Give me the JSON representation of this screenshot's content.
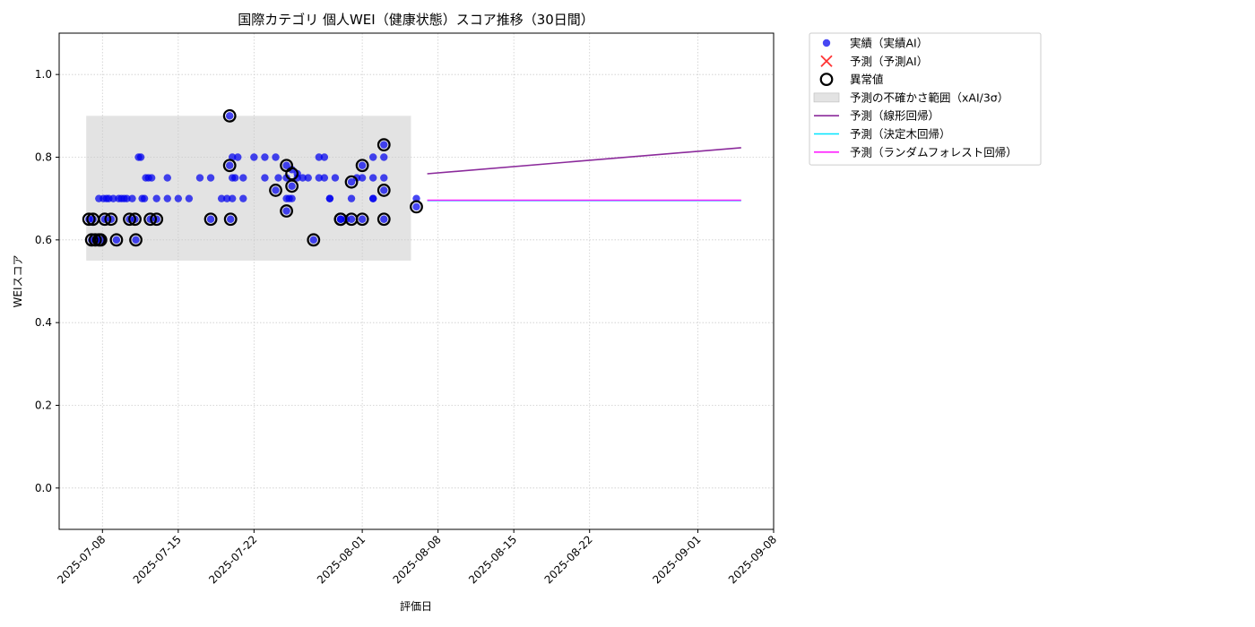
{
  "chart_data": {
    "type": "scatter",
    "title": "国際カテゴリ 個人WEI（健康状態）スコア推移（30日間）",
    "xlabel": "評価日",
    "ylabel": "WEIスコア",
    "xlim": [
      "2025-07-04",
      "2025-09-08"
    ],
    "ylim": [
      -0.1,
      1.1
    ],
    "x_ticks": [
      "2025-07-08",
      "2025-07-15",
      "2025-07-22",
      "2025-08-01",
      "2025-08-08",
      "2025-08-15",
      "2025-08-22",
      "2025-09-01",
      "2025-09-08"
    ],
    "y_ticks": [
      0.0,
      0.2,
      0.4,
      0.6,
      0.8,
      1.0
    ],
    "y_tick_labels": [
      "0.0",
      "0.2",
      "0.4",
      "0.6",
      "0.8",
      "1.0"
    ],
    "grid": true,
    "legend_position": "outside-top-right",
    "uncertainty_band": {
      "name": "予測の不確かさ範囲（xAI/3σ）",
      "x_start": "2025-07-06 12:00",
      "x_end": "2025-08-05 12:00",
      "y_low": 0.55,
      "y_high": 0.9,
      "color": "#c8c8c8"
    },
    "series": [
      {
        "name": "実績（実績AI）",
        "kind": "scatter",
        "color": "#0000ee",
        "points": [
          [
            "2025-07-06 18:00",
            0.65
          ],
          [
            "2025-07-07 03:00",
            0.65
          ],
          [
            "2025-07-07 00:00",
            0.6
          ],
          [
            "2025-07-07 08:00",
            0.6
          ],
          [
            "2025-07-07 13:00",
            0.6
          ],
          [
            "2025-07-07 16:00",
            0.7
          ],
          [
            "2025-07-07 20:00",
            0.6
          ],
          [
            "2025-07-08 02:00",
            0.7
          ],
          [
            "2025-07-08 05:00",
            0.65
          ],
          [
            "2025-07-08 09:00",
            0.7
          ],
          [
            "2025-07-08 14:00",
            0.7
          ],
          [
            "2025-07-08 19:00",
            0.65
          ],
          [
            "2025-07-09 00:00",
            0.7
          ],
          [
            "2025-07-09 07:00",
            0.6
          ],
          [
            "2025-07-09 12:00",
            0.7
          ],
          [
            "2025-07-09 18:00",
            0.7
          ],
          [
            "2025-07-10 00:00",
            0.7
          ],
          [
            "2025-07-10 06:00",
            0.7
          ],
          [
            "2025-07-10 12:00",
            0.65
          ],
          [
            "2025-07-10 18:00",
            0.7
          ],
          [
            "2025-07-11 00:00",
            0.65
          ],
          [
            "2025-07-11 02:00",
            0.6
          ],
          [
            "2025-07-11 08:00",
            0.8
          ],
          [
            "2025-07-11 13:00",
            0.8
          ],
          [
            "2025-07-11 16:00",
            0.7
          ],
          [
            "2025-07-11 21:00",
            0.7
          ],
          [
            "2025-07-12 00:00",
            0.75
          ],
          [
            "2025-07-12 06:00",
            0.75
          ],
          [
            "2025-07-12 10:00",
            0.65
          ],
          [
            "2025-07-12 13:00",
            0.75
          ],
          [
            "2025-07-13 00:00",
            0.7
          ],
          [
            "2025-07-13 00:00",
            0.65
          ],
          [
            "2025-07-14 00:00",
            0.7
          ],
          [
            "2025-07-14 00:00",
            0.75
          ],
          [
            "2025-07-15 00:00",
            0.7
          ],
          [
            "2025-07-16 00:00",
            0.7
          ],
          [
            "2025-07-17 00:00",
            0.75
          ],
          [
            "2025-07-18 00:00",
            0.65
          ],
          [
            "2025-07-18 00:00",
            0.75
          ],
          [
            "2025-07-19 00:00",
            0.7
          ],
          [
            "2025-07-19 12:00",
            0.7
          ],
          [
            "2025-07-19 18:00",
            0.9
          ],
          [
            "2025-07-19 18:00",
            0.78
          ],
          [
            "2025-07-19 20:00",
            0.65
          ],
          [
            "2025-07-20 00:00",
            0.75
          ],
          [
            "2025-07-20 00:00",
            0.8
          ],
          [
            "2025-07-20 00:00",
            0.7
          ],
          [
            "2025-07-20 06:00",
            0.75
          ],
          [
            "2025-07-20 12:00",
            0.8
          ],
          [
            "2025-07-21 00:00",
            0.75
          ],
          [
            "2025-07-21 00:00",
            0.7
          ],
          [
            "2025-07-22 00:00",
            0.8
          ],
          [
            "2025-07-23 00:00",
            0.75
          ],
          [
            "2025-07-23 00:00",
            0.8
          ],
          [
            "2025-07-24 00:00",
            0.72
          ],
          [
            "2025-07-24 00:00",
            0.8
          ],
          [
            "2025-07-24 06:00",
            0.75
          ],
          [
            "2025-07-25 00:00",
            0.75
          ],
          [
            "2025-07-25 00:00",
            0.7
          ],
          [
            "2025-07-25 00:00",
            0.67
          ],
          [
            "2025-07-25 00:00",
            0.78
          ],
          [
            "2025-07-25 06:00",
            0.7
          ],
          [
            "2025-07-25 12:00",
            0.77
          ],
          [
            "2025-07-25 12:00",
            0.73
          ],
          [
            "2025-07-25 12:00",
            0.7
          ],
          [
            "2025-07-26 00:00",
            0.76
          ],
          [
            "2025-07-26 00:00",
            0.75
          ],
          [
            "2025-07-26 12:00",
            0.75
          ],
          [
            "2025-07-27 00:00",
            0.75
          ],
          [
            "2025-07-27 12:00",
            0.6
          ],
          [
            "2025-07-28 00:00",
            0.8
          ],
          [
            "2025-07-28 00:00",
            0.75
          ],
          [
            "2025-07-28 12:00",
            0.8
          ],
          [
            "2025-07-28 12:00",
            0.75
          ],
          [
            "2025-07-29 00:00",
            0.7
          ],
          [
            "2025-07-29 00:00",
            0.7
          ],
          [
            "2025-07-29 12:00",
            0.75
          ],
          [
            "2025-07-30 00:00",
            0.65
          ],
          [
            "2025-07-30 00:00",
            0.65
          ],
          [
            "2025-07-30 12:00",
            0.65
          ],
          [
            "2025-07-31 00:00",
            0.65
          ],
          [
            "2025-07-31 00:00",
            0.74
          ],
          [
            "2025-07-31 00:00",
            0.7
          ],
          [
            "2025-07-31 12:00",
            0.75
          ],
          [
            "2025-08-01 00:00",
            0.78
          ],
          [
            "2025-08-01 00:00",
            0.75
          ],
          [
            "2025-08-01 00:00",
            0.65
          ],
          [
            "2025-08-02 00:00",
            0.7
          ],
          [
            "2025-08-02 00:00",
            0.8
          ],
          [
            "2025-08-02 00:00",
            0.75
          ],
          [
            "2025-08-02 00:00",
            0.7
          ],
          [
            "2025-08-03 00:00",
            0.75
          ],
          [
            "2025-08-03 00:00",
            0.72
          ],
          [
            "2025-08-03 00:00",
            0.65
          ],
          [
            "2025-08-03 00:00",
            0.8
          ],
          [
            "2025-08-03 00:00",
            0.83
          ],
          [
            "2025-08-06 00:00",
            0.7
          ],
          [
            "2025-08-06 00:00",
            0.68
          ]
        ]
      },
      {
        "name": "予測（予測AI）",
        "kind": "scatter",
        "color": "#ff3333",
        "points": []
      },
      {
        "name": "異常値",
        "kind": "outlier-ring",
        "color": "#000000",
        "points": [
          [
            "2025-07-06 18:00",
            0.65
          ],
          [
            "2025-07-07 03:00",
            0.65
          ],
          [
            "2025-07-07 00:00",
            0.6
          ],
          [
            "2025-07-07 08:00",
            0.6
          ],
          [
            "2025-07-07 16:00",
            0.6
          ],
          [
            "2025-07-07 20:00",
            0.6
          ],
          [
            "2025-07-08 05:00",
            0.65
          ],
          [
            "2025-07-08 19:00",
            0.65
          ],
          [
            "2025-07-09 07:00",
            0.6
          ],
          [
            "2025-07-10 12:00",
            0.65
          ],
          [
            "2025-07-11 00:00",
            0.65
          ],
          [
            "2025-07-11 02:00",
            0.6
          ],
          [
            "2025-07-12 10:00",
            0.65
          ],
          [
            "2025-07-13 00:00",
            0.65
          ],
          [
            "2025-07-18 00:00",
            0.65
          ],
          [
            "2025-07-19 18:00",
            0.9
          ],
          [
            "2025-07-19 18:00",
            0.78
          ],
          [
            "2025-07-19 20:00",
            0.65
          ],
          [
            "2025-07-24 00:00",
            0.72
          ],
          [
            "2025-07-25 00:00",
            0.78
          ],
          [
            "2025-07-25 00:00",
            0.67
          ],
          [
            "2025-07-25 12:00",
            0.76
          ],
          [
            "2025-07-25 12:00",
            0.73
          ],
          [
            "2025-07-27 12:00",
            0.6
          ],
          [
            "2025-07-30 00:00",
            0.65
          ],
          [
            "2025-07-30 00:00",
            0.65
          ],
          [
            "2025-07-31 00:00",
            0.65
          ],
          [
            "2025-07-31 00:00",
            0.74
          ],
          [
            "2025-08-01 00:00",
            0.78
          ],
          [
            "2025-08-01 00:00",
            0.65
          ],
          [
            "2025-08-03 00:00",
            0.72
          ],
          [
            "2025-08-03 00:00",
            0.65
          ],
          [
            "2025-08-03 00:00",
            0.83
          ],
          [
            "2025-08-06 00:00",
            0.68
          ]
        ]
      },
      {
        "name": "予測（線形回帰）",
        "kind": "line",
        "color": "#8b2a9b",
        "points": [
          [
            "2025-08-07 00:00",
            0.76
          ],
          [
            "2025-09-05 00:00",
            0.823
          ]
        ]
      },
      {
        "name": "予測（決定木回帰）",
        "kind": "line",
        "color": "#00e5ff",
        "points": [
          [
            "2025-08-07 00:00",
            0.695
          ],
          [
            "2025-09-05 00:00",
            0.695
          ]
        ]
      },
      {
        "name": "予測（ランダムフォレスト回帰）",
        "kind": "line",
        "color": "#ff22ff",
        "points": [
          [
            "2025-08-07 00:00",
            0.696
          ],
          [
            "2025-09-05 00:00",
            0.696
          ]
        ]
      }
    ]
  }
}
